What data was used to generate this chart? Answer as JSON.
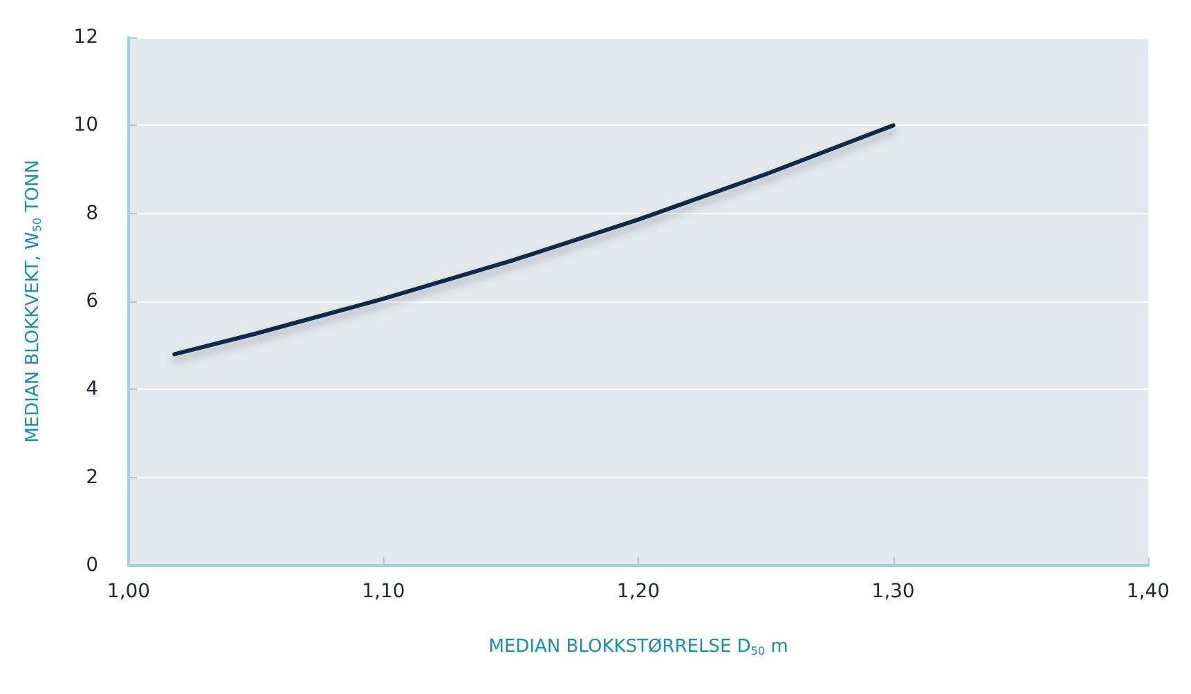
{
  "chart_data": {
    "type": "line",
    "xlabel": "MEDIAN BLOKKSTØRRELSE D$_{50}$ m",
    "ylabel": "MEDIAN BLOKKVEKT, W$_{50}$ TONN",
    "x": [
      1.018,
      1.05,
      1.1,
      1.15,
      1.2,
      1.25,
      1.3
    ],
    "series": [
      {
        "color": "#0f2b4c",
        "values": [
          4.8,
          5.27,
          6.06,
          6.92,
          7.86,
          8.89,
          10.0
        ]
      }
    ],
    "xlim": [
      1.0,
      1.4
    ],
    "xticks": [
      {
        "value": 1.0,
        "label": "1,00"
      },
      {
        "value": 1.1,
        "label": "1,10"
      },
      {
        "value": 1.2,
        "label": "1,20"
      },
      {
        "value": 1.3,
        "label": "1,30"
      },
      {
        "value": 1.4,
        "label": "1,40"
      }
    ],
    "ylim": [
      0,
      12
    ],
    "yticks": [
      0,
      2,
      4,
      6,
      8,
      10,
      12
    ],
    "grid": "y",
    "marker": "none",
    "line_style": "solid"
  }
}
